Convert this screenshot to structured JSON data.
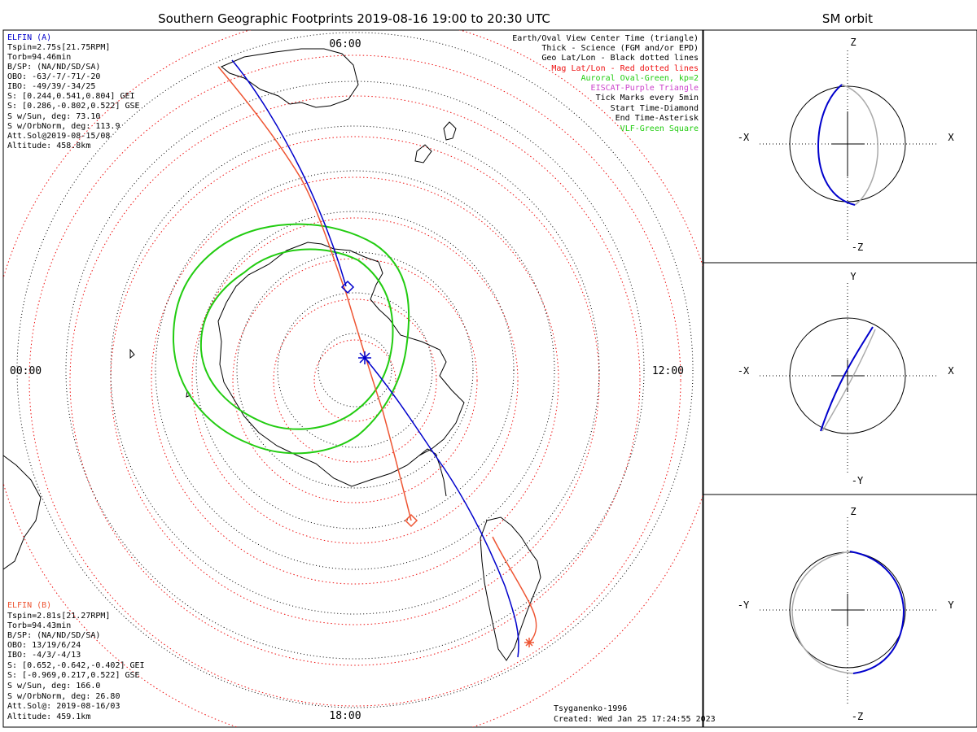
{
  "title": "Southern Geographic Footprints 2019-08-16 19:00 to 20:30 UTC",
  "sm_title": "SM orbit",
  "colors": {
    "elfin_a": "#0000cc",
    "elfin_b": "#ee5533",
    "geo_grid": "#000000",
    "mag_grid": "#ee1111",
    "auroral": "#22cc11",
    "eiscat": "#cc44cc",
    "vlf": "#22cc11",
    "orbit_gray": "#aaaaaa"
  },
  "local_time_labels": {
    "top": "06:00",
    "left": "00:00",
    "right": "12:00",
    "bottom": "18:00"
  },
  "elfin_a": {
    "name": "ELFIN (A)",
    "lines": [
      "Tspin=2.75s[21.75RPM]",
      "Torb=94.46min",
      "B/SP: (NA/ND/SD/SA)",
      "OBO: -63/-7/-71/-20",
      "IBO: -49/39/-34/25",
      "S: [0.244,0.541,0.804] GEI",
      "S: [0.286,-0.802,0.522] GSE",
      "S w/Sun, deg: 73.10",
      "S w/OrbNorm, deg: 113.9",
      "Att.Sol@2019-08-15/08",
      "Altitude: 458.8km"
    ]
  },
  "elfin_b": {
    "name": "ELFIN (B)",
    "lines": [
      "Tspin=2.81s[21.27RPM]",
      "Torb=94.43min",
      "B/SP: (NA/ND/SD/SA)",
      "OBO: 13/19/6/24",
      "IBO: -4/3/-4/13",
      "S: [0.652,-0.642,-0.402] GEI",
      "S: [-0.969,0.217,0.522] GSE",
      "S w/Sun, deg: 166.0",
      "S w/OrbNorm, deg: 26.80",
      "Att.Sol@: 2019-08-16/03",
      "Altitude: 459.1km"
    ]
  },
  "legend": [
    {
      "text": "Earth/Oval View Center Time (triangle)",
      "color": "#000000"
    },
    {
      "text": "Thick - Science (FGM and/or EPD)",
      "color": "#000000"
    },
    {
      "text": "Geo Lat/Lon - Black dotted lines",
      "color": "#000000"
    },
    {
      "text": "Mag Lat/Lon - Red dotted lines",
      "color": "#ee1111"
    },
    {
      "text": "Auroral Oval-Green, kp=2",
      "color": "#22cc11"
    },
    {
      "text": "EISCAT-Purple Triangle",
      "color": "#cc44cc"
    },
    {
      "text": "Tick Marks every 5min",
      "color": "#000000"
    },
    {
      "text": "Start Time-Diamond",
      "color": "#000000"
    },
    {
      "text": "End Time-Asterisk",
      "color": "#000000"
    },
    {
      "text": "VLF-Green Square",
      "color": "#22cc11"
    }
  ],
  "footer": {
    "model": "Tsyganenko-1996",
    "created": "Created: Wed Jan 25 17:24:55 2023"
  },
  "sm_panels": [
    {
      "name": "xz",
      "top": "Z",
      "bottom": "-Z",
      "left": "-X",
      "right": "X"
    },
    {
      "name": "xy",
      "top": "Y",
      "bottom": "-Y",
      "left": "-X",
      "right": "X"
    },
    {
      "name": "yz",
      "top": "Z",
      "bottom": "-Z",
      "left": "-Y",
      "right": "Y"
    }
  ]
}
